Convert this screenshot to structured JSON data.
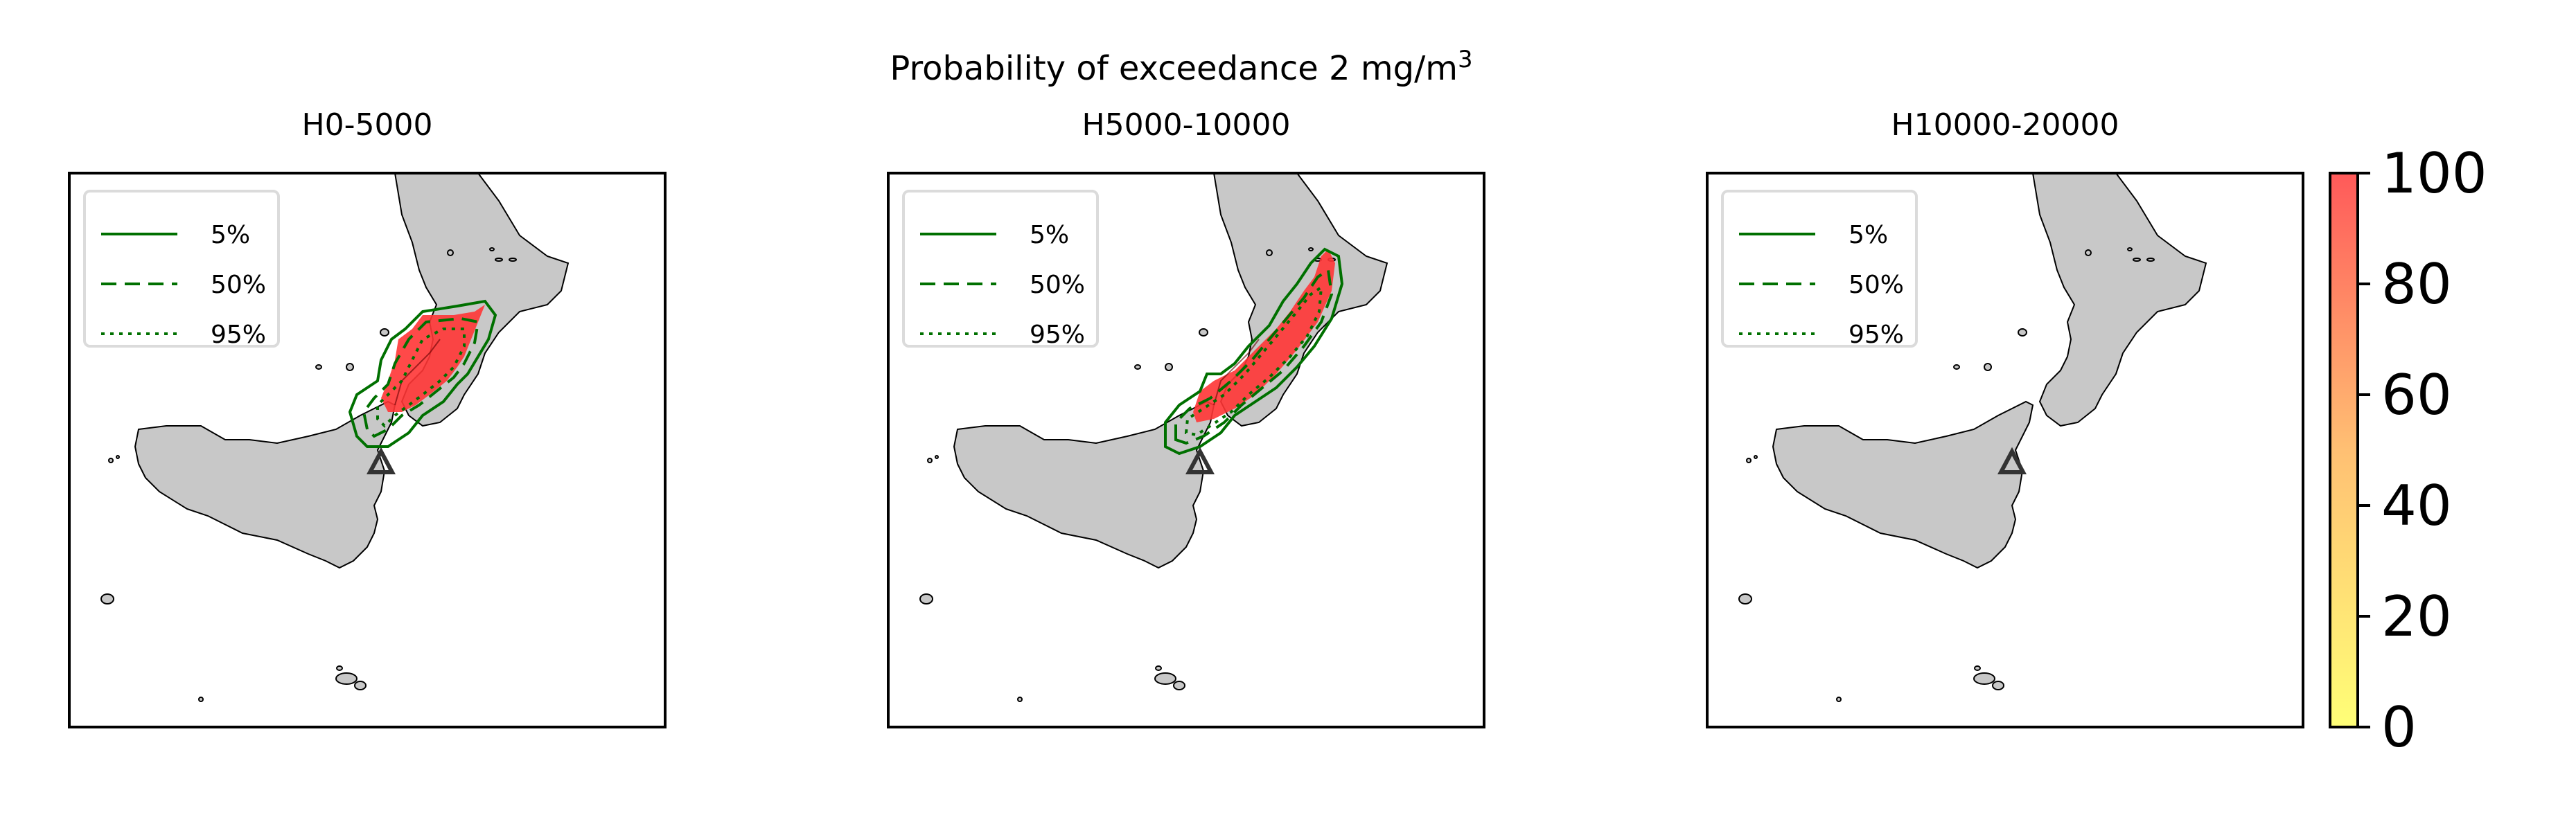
{
  "figure": {
    "title_line1": "Probability of exceedance 2 mg/m",
    "title_sup": "3"
  },
  "panels": [
    {
      "subtitle": "H0-5000",
      "has_plume": true
    },
    {
      "subtitle": "H5000-10000",
      "has_plume": true
    },
    {
      "subtitle": "H10000-20000",
      "has_plume": false
    }
  ],
  "legend": {
    "entries": [
      {
        "label": "5%",
        "style": "solid"
      },
      {
        "label": "50%",
        "style": "dashed"
      },
      {
        "label": "95%",
        "style": "dotted"
      }
    ]
  },
  "colorbar": {
    "ticks": [
      "0",
      "20",
      "40",
      "60",
      "80",
      "100"
    ],
    "min": 0,
    "max": 100,
    "color_low": "#ffff55",
    "color_mid": "#ffb050",
    "color_high": "#ff3030"
  },
  "colors": {
    "land": "#c8c8c8",
    "contour": "#007000",
    "plume": "#ff3535",
    "vent_marker": "#333333"
  }
}
